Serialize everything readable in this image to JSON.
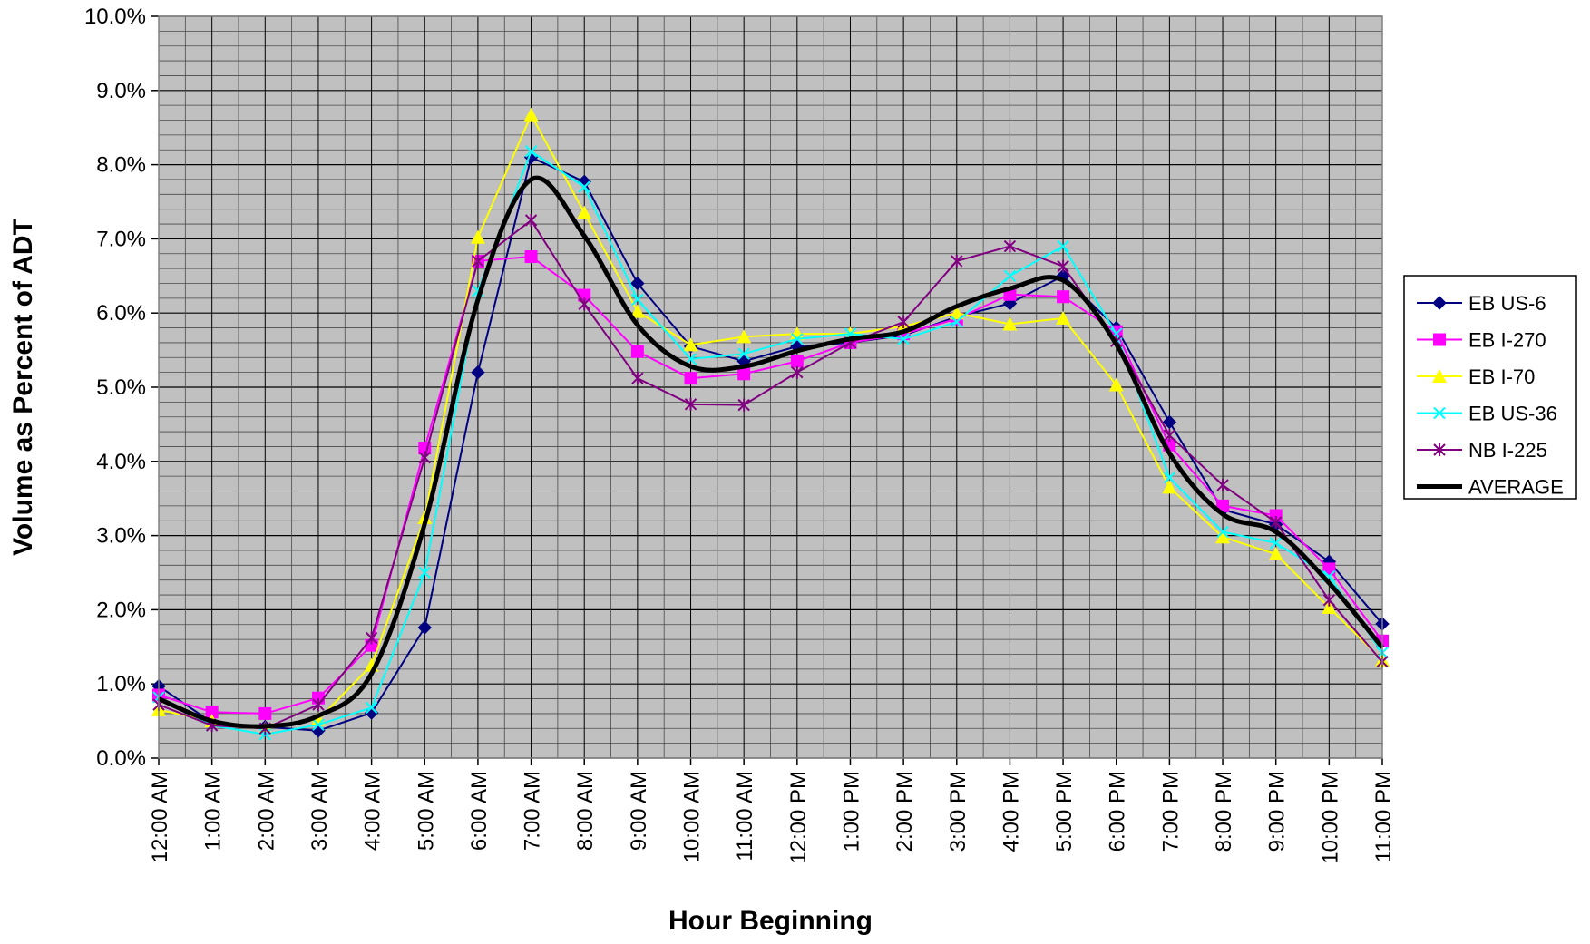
{
  "chart_data": {
    "type": "line",
    "title": "",
    "xlabel": "Hour Beginning",
    "ylabel": "Volume as Percent of ADT",
    "ylim": [
      0,
      10
    ],
    "y_ticks": [
      "0.0%",
      "1.0%",
      "2.0%",
      "3.0%",
      "4.0%",
      "5.0%",
      "6.0%",
      "7.0%",
      "8.0%",
      "9.0%",
      "10.0%"
    ],
    "categories": [
      "12:00 AM",
      "1:00 AM",
      "2:00 AM",
      "3:00 AM",
      "4:00 AM",
      "5:00 AM",
      "6:00 AM",
      "7:00 AM",
      "8:00 AM",
      "9:00 AM",
      "10:00 AM",
      "11:00 AM",
      "12:00 PM",
      "1:00 PM",
      "2:00 PM",
      "3:00 PM",
      "4:00 PM",
      "5:00 PM",
      "6:00 PM",
      "7:00 PM",
      "8:00 PM",
      "9:00 PM",
      "10:00 PM",
      "11:00 PM"
    ],
    "grid": true,
    "legend_position": "right",
    "background_color": "#c0c0c0",
    "series": [
      {
        "name": "EB US-6",
        "color": "#000080",
        "marker": "diamond",
        "values": [
          0.97,
          0.48,
          0.42,
          0.37,
          0.61,
          1.76,
          5.2,
          8.1,
          7.77,
          6.4,
          5.55,
          5.35,
          5.55,
          5.6,
          5.7,
          5.95,
          6.13,
          6.5,
          5.8,
          4.53,
          3.35,
          3.15,
          2.65,
          1.81
        ]
      },
      {
        "name": "EB I-270",
        "color": "#ff00ff",
        "marker": "square",
        "values": [
          0.85,
          0.62,
          0.6,
          0.81,
          1.52,
          4.18,
          6.7,
          6.76,
          6.24,
          5.48,
          5.12,
          5.18,
          5.35,
          5.6,
          5.72,
          5.92,
          6.25,
          6.22,
          5.75,
          4.22,
          3.4,
          3.27,
          2.55,
          1.58
        ]
      },
      {
        "name": "EB I-70",
        "color": "#ffff00",
        "marker": "triangle",
        "values": [
          0.65,
          0.5,
          0.4,
          0.52,
          1.25,
          3.24,
          7.02,
          8.67,
          7.35,
          6.02,
          5.57,
          5.68,
          5.72,
          5.72,
          5.82,
          6.0,
          5.85,
          5.93,
          5.03,
          3.65,
          2.98,
          2.75,
          2.03,
          1.32
        ]
      },
      {
        "name": "EB US-36",
        "color": "#00ffff",
        "marker": "x",
        "values": [
          0.82,
          0.44,
          0.32,
          0.45,
          0.68,
          2.5,
          6.3,
          8.18,
          7.7,
          6.18,
          5.38,
          5.45,
          5.65,
          5.72,
          5.65,
          5.88,
          6.5,
          6.9,
          5.72,
          3.78,
          3.05,
          2.9,
          2.45,
          1.42
        ]
      },
      {
        "name": "NB I-225",
        "color": "#800080",
        "marker": "star",
        "values": [
          0.72,
          0.44,
          0.4,
          0.72,
          1.62,
          4.05,
          6.7,
          7.25,
          6.12,
          5.12,
          4.77,
          4.76,
          5.2,
          5.6,
          5.88,
          6.7,
          6.9,
          6.63,
          5.62,
          4.35,
          3.68,
          3.18,
          2.13,
          1.3
        ]
      },
      {
        "name": "AVERAGE",
        "color": "#000000",
        "marker": "none",
        "smooth": true,
        "values": [
          0.8,
          0.5,
          0.43,
          0.57,
          1.14,
          3.16,
          6.18,
          7.8,
          7.04,
          5.84,
          5.28,
          5.28,
          5.49,
          5.65,
          5.75,
          6.09,
          6.33,
          6.44,
          5.58,
          4.11,
          3.29,
          3.05,
          2.36,
          1.49
        ]
      }
    ]
  }
}
